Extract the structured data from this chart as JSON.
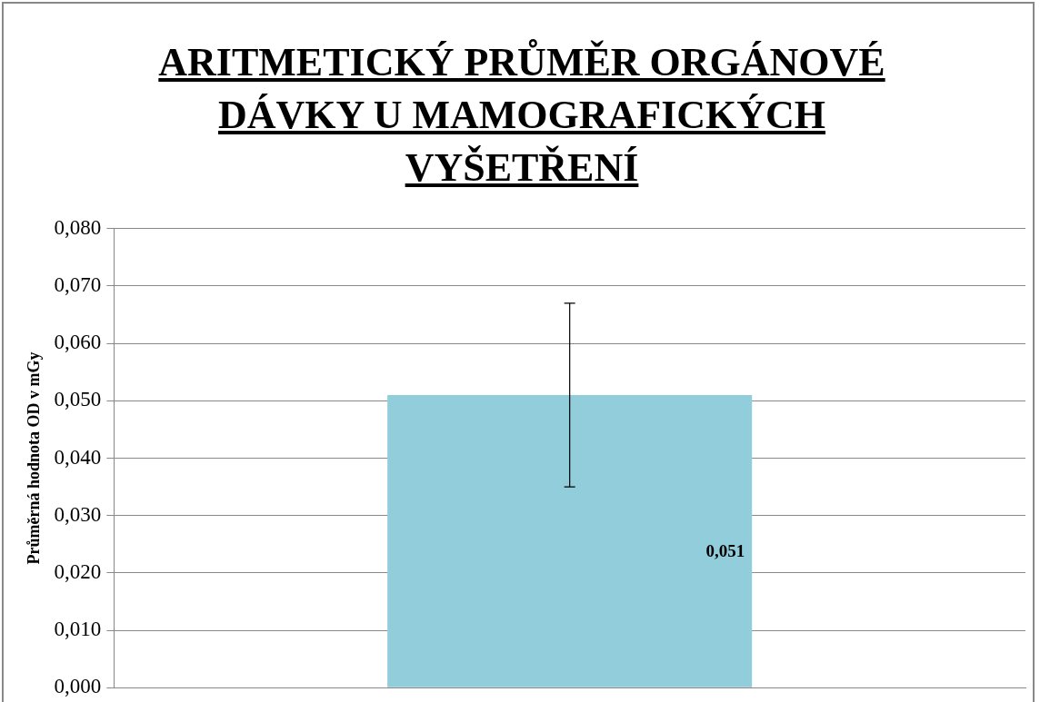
{
  "chart_data": {
    "type": "bar",
    "title": "ARITMETICKÝ PRŮMĚR ORGÁNOVÉ DÁVKY U MAMOGRAFICKÝCH VYŠETŘENÍ",
    "ylabel": "Průměrná hodnota OD v mGy",
    "categories": [
      null
    ],
    "values": [
      0.051
    ],
    "errors": [
      [
        0.035,
        0.067
      ]
    ],
    "value_labels": [
      "0,051"
    ],
    "color": "#92cddc",
    "ylim": [
      0,
      0.08
    ],
    "yticks": [
      {
        "value": 0,
        "label": "0,000"
      },
      {
        "value": 0.01,
        "label": "0,010"
      },
      {
        "value": 0.02,
        "label": "0,020"
      },
      {
        "value": 0.03,
        "label": "0,030"
      },
      {
        "value": 0.04,
        "label": "0,040"
      },
      {
        "value": 0.05,
        "label": "0,050"
      },
      {
        "value": 0.06,
        "label": "0,060"
      },
      {
        "value": 0.07,
        "label": "0,070"
      },
      {
        "value": 0.08,
        "label": "0,080"
      }
    ],
    "grid": "y",
    "tick_labels": "y"
  }
}
